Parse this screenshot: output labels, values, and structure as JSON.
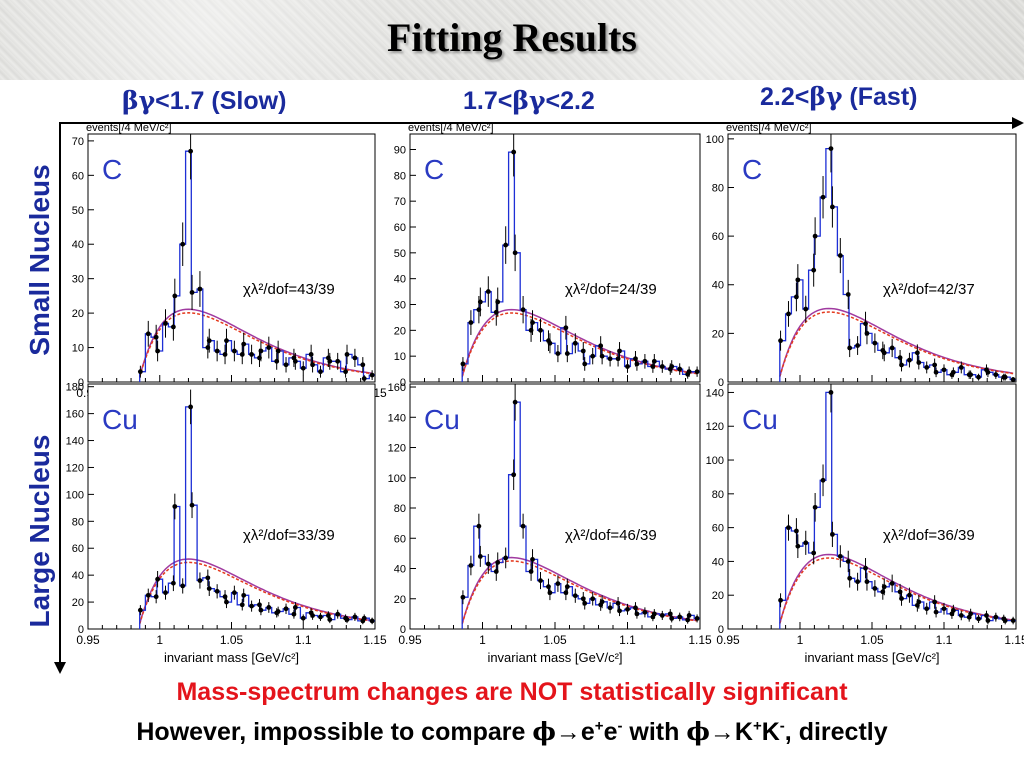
{
  "title": "Fitting Results",
  "columns": [
    {
      "pre": "βγ",
      "post": "<1.7 (Slow)"
    },
    {
      "pre": "1.7<",
      "mid": "βγ",
      "post": "<2.2"
    },
    {
      "pre": "2.2<",
      "mid": "βγ",
      "post": " (Fast)"
    }
  ],
  "rows": [
    "Small Nucleus",
    "Large Nucleus"
  ],
  "footer": {
    "red": "Mass-spectrum changes are NOT statistically significant",
    "black_parts": [
      "However, impossible to compare ",
      "ϕ",
      "→",
      "e",
      "+",
      "e",
      "-",
      " with ",
      "ϕ",
      "→",
      "K",
      "+",
      "K",
      "-",
      ", directly"
    ]
  },
  "chart_data": [
    {
      "type": "histogram",
      "target": "C",
      "column": 0,
      "ylabel": "events[/4 MeV/c²]",
      "ylim": [
        0,
        72
      ],
      "yticks": [
        0,
        10,
        20,
        30,
        40,
        50,
        60,
        70
      ],
      "xlim": [
        0.95,
        1.15
      ],
      "xticks": [
        "0.95",
        "1",
        "1.05",
        "1.1",
        "1.15"
      ],
      "fit_label": "χλ²/dof=43/39",
      "xlabel": "",
      "centers": [
        0.988,
        0.992,
        0.996,
        1.0,
        1.004,
        1.008,
        1.012,
        1.016,
        1.02,
        1.024,
        1.028,
        1.032,
        1.036,
        1.04,
        1.044,
        1.048,
        1.052,
        1.056,
        1.06,
        1.064,
        1.068,
        1.072,
        1.076,
        1.08,
        1.084,
        1.088,
        1.092,
        1.096,
        1.1,
        1.104,
        1.108,
        1.112,
        1.116,
        1.12,
        1.124,
        1.128,
        1.132,
        1.136,
        1.14,
        1.144,
        1.148
      ],
      "values": [
        3,
        14,
        13,
        9,
        17,
        16,
        25,
        40,
        67,
        26,
        27,
        10,
        12,
        9,
        8,
        12,
        9,
        8,
        11,
        8,
        7,
        9,
        10,
        6,
        9,
        5,
        7,
        6,
        4,
        8,
        5,
        3,
        7,
        6,
        6,
        3,
        8,
        7,
        5,
        1,
        2
      ]
    },
    {
      "type": "histogram",
      "target": "C",
      "column": 1,
      "ylabel": "events[/4 MeV/c²]",
      "ylim": [
        0,
        96
      ],
      "yticks": [
        0,
        10,
        20,
        30,
        40,
        50,
        60,
        70,
        80,
        90
      ],
      "xlim": [
        0.95,
        1.15
      ],
      "xticks": [],
      "fit_label": "χλ²/dof=24/39",
      "xlabel": "",
      "centers": [
        0.988,
        0.992,
        0.996,
        1.0,
        1.004,
        1.008,
        1.012,
        1.016,
        1.02,
        1.024,
        1.028,
        1.032,
        1.036,
        1.04,
        1.044,
        1.048,
        1.052,
        1.056,
        1.06,
        1.064,
        1.068,
        1.072,
        1.076,
        1.08,
        1.084,
        1.088,
        1.092,
        1.096,
        1.1,
        1.104,
        1.108,
        1.112,
        1.116,
        1.12,
        1.124,
        1.128,
        1.132,
        1.136,
        1.14,
        1.144,
        1.148
      ],
      "values": [
        7,
        23,
        28,
        31,
        35,
        27,
        31,
        53,
        89,
        50,
        28,
        20,
        23,
        20,
        16,
        15,
        11,
        21,
        11,
        15,
        12,
        7,
        10,
        14,
        10,
        9,
        9,
        12,
        6,
        9,
        7,
        8,
        6,
        8,
        6,
        5,
        6,
        5,
        3,
        4,
        4
      ]
    },
    {
      "type": "histogram",
      "target": "C",
      "column": 2,
      "ylabel": "events[/4 MeV/c²]",
      "ylim": [
        0,
        102
      ],
      "yticks": [
        0,
        20,
        40,
        60,
        80,
        100
      ],
      "xlim": [
        0.95,
        1.15
      ],
      "xticks": [],
      "fit_label": "χλ²/dof=42/37",
      "xlabel": "",
      "centers": [
        0.988,
        0.992,
        0.996,
        1.0,
        1.004,
        1.008,
        1.012,
        1.016,
        1.02,
        1.024,
        1.028,
        1.032,
        1.036,
        1.04,
        1.044,
        1.048,
        1.052,
        1.056,
        1.06,
        1.064,
        1.068,
        1.072,
        1.076,
        1.08,
        1.084,
        1.088,
        1.092,
        1.096,
        1.1,
        1.104,
        1.108,
        1.112,
        1.116,
        1.12,
        1.124,
        1.128,
        1.132,
        1.136,
        1.14,
        1.144,
        1.148
      ],
      "values": [
        17,
        28,
        35,
        42,
        30,
        46,
        60,
        76,
        96,
        72,
        52,
        36,
        14,
        15,
        24,
        20,
        16,
        13,
        12,
        14,
        10,
        7,
        9,
        12,
        8,
        6,
        7,
        4,
        5,
        3,
        4,
        6,
        3,
        3,
        2,
        5,
        4,
        3,
        2,
        2,
        1
      ]
    },
    {
      "type": "histogram",
      "target": "Cu",
      "column": 0,
      "ylabel": "",
      "ylim": [
        0,
        182
      ],
      "yticks": [
        0,
        20,
        40,
        60,
        80,
        100,
        120,
        140,
        160,
        180
      ],
      "xlim": [
        0.95,
        1.15
      ],
      "xticks": [
        "0.95",
        "1",
        "1.05",
        "1.1",
        "1.15"
      ],
      "fit_label": "χλ²/dof=33/39",
      "xlabel": "invariant mass [GeV/c²]",
      "centers": [
        0.988,
        0.992,
        0.996,
        1.0,
        1.004,
        1.008,
        1.012,
        1.016,
        1.02,
        1.024,
        1.028,
        1.032,
        1.036,
        1.04,
        1.044,
        1.048,
        1.052,
        1.056,
        1.06,
        1.064,
        1.068,
        1.072,
        1.076,
        1.08,
        1.084,
        1.088,
        1.092,
        1.096,
        1.1,
        1.104,
        1.108,
        1.112,
        1.116,
        1.12,
        1.124,
        1.128,
        1.132,
        1.136,
        1.14,
        1.144,
        1.148
      ],
      "values": [
        14,
        25,
        24,
        37,
        27,
        34,
        91,
        32,
        165,
        92,
        36,
        38,
        30,
        28,
        24,
        20,
        27,
        18,
        25,
        17,
        18,
        14,
        16,
        12,
        13,
        15,
        11,
        16,
        8,
        12,
        10,
        9,
        10,
        7,
        11,
        8,
        7,
        9,
        6,
        8,
        6
      ]
    },
    {
      "type": "histogram",
      "target": "Cu",
      "column": 1,
      "ylabel": "",
      "ylim": [
        0,
        162
      ],
      "yticks": [
        0,
        20,
        40,
        60,
        80,
        100,
        120,
        140,
        160
      ],
      "xlim": [
        0.95,
        1.15
      ],
      "xticks": [
        "0.95",
        "1",
        "1.05",
        "1.1",
        "1.15"
      ],
      "fit_label": "χλ²/dof=46/39",
      "xlabel": "invariant mass [GeV/c²]",
      "centers": [
        0.988,
        0.992,
        0.996,
        1.0,
        1.004,
        1.008,
        1.012,
        1.016,
        1.02,
        1.024,
        1.028,
        1.032,
        1.036,
        1.04,
        1.044,
        1.048,
        1.052,
        1.056,
        1.06,
        1.064,
        1.068,
        1.072,
        1.076,
        1.08,
        1.084,
        1.088,
        1.092,
        1.096,
        1.1,
        1.104,
        1.108,
        1.112,
        1.116,
        1.12,
        1.124,
        1.128,
        1.132,
        1.136,
        1.14,
        1.144,
        1.148
      ],
      "values": [
        21,
        42,
        68,
        48,
        43,
        38,
        44,
        47,
        102,
        150,
        68,
        38,
        46,
        32,
        28,
        24,
        30,
        24,
        28,
        22,
        20,
        17,
        20,
        16,
        18,
        14,
        17,
        12,
        13,
        14,
        10,
        11,
        8,
        10,
        9,
        10,
        7,
        8,
        6,
        9,
        7
      ]
    },
    {
      "type": "histogram",
      "target": "Cu",
      "column": 2,
      "ylabel": "",
      "ylim": [
        0,
        145
      ],
      "yticks": [
        0,
        20,
        40,
        60,
        80,
        100,
        120,
        140
      ],
      "xlim": [
        0.95,
        1.15
      ],
      "xticks": [
        "0.95",
        "1",
        "1.05",
        "1.1",
        "1.15"
      ],
      "fit_label": "χλ²/dof=36/39",
      "xlabel": "invariant mass [GeV/c²]",
      "centers": [
        0.988,
        0.992,
        0.996,
        1.0,
        1.004,
        1.008,
        1.012,
        1.016,
        1.02,
        1.024,
        1.028,
        1.032,
        1.036,
        1.04,
        1.044,
        1.048,
        1.052,
        1.056,
        1.06,
        1.064,
        1.068,
        1.072,
        1.076,
        1.08,
        1.084,
        1.088,
        1.092,
        1.096,
        1.1,
        1.104,
        1.108,
        1.112,
        1.116,
        1.12,
        1.124,
        1.128,
        1.132,
        1.136,
        1.14,
        1.144,
        1.148
      ],
      "values": [
        17,
        60,
        58,
        49,
        51,
        45,
        72,
        88,
        140,
        56,
        43,
        40,
        30,
        28,
        36,
        28,
        24,
        22,
        25,
        27,
        22,
        18,
        20,
        14,
        16,
        12,
        16,
        10,
        12,
        9,
        11,
        8,
        7,
        9,
        6,
        8,
        5,
        7,
        6,
        5,
        5
      ]
    }
  ],
  "colors": {
    "title_blue": "#1a2a9c",
    "hist": "#1d2fd6",
    "fit_total": "#a03aa0",
    "fit_bg": "#e43a1e",
    "alert": "#e4141b"
  }
}
